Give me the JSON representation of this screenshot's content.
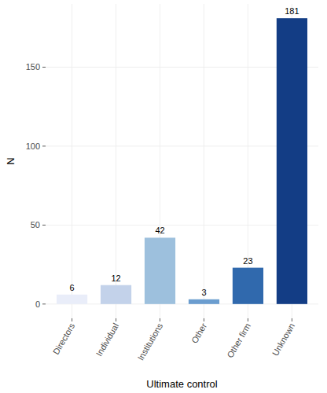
{
  "chart_data": {
    "type": "bar",
    "x_label": "Ultimate control",
    "y_label": "N",
    "categories": [
      "Directors",
      "Individual",
      "Institutions",
      "Other",
      "Other firm",
      "Unknown"
    ],
    "values": [
      6,
      12,
      42,
      3,
      23,
      181
    ],
    "colors": [
      "#e9edf9",
      "#c3d2ea",
      "#9dc0dd",
      "#6b9dcf",
      "#3069ad",
      "#133d85"
    ],
    "ylim": [
      -9.05,
      190.05
    ],
    "yticks": [
      0,
      50,
      100,
      150
    ],
    "grid": true,
    "data_labels": true
  }
}
